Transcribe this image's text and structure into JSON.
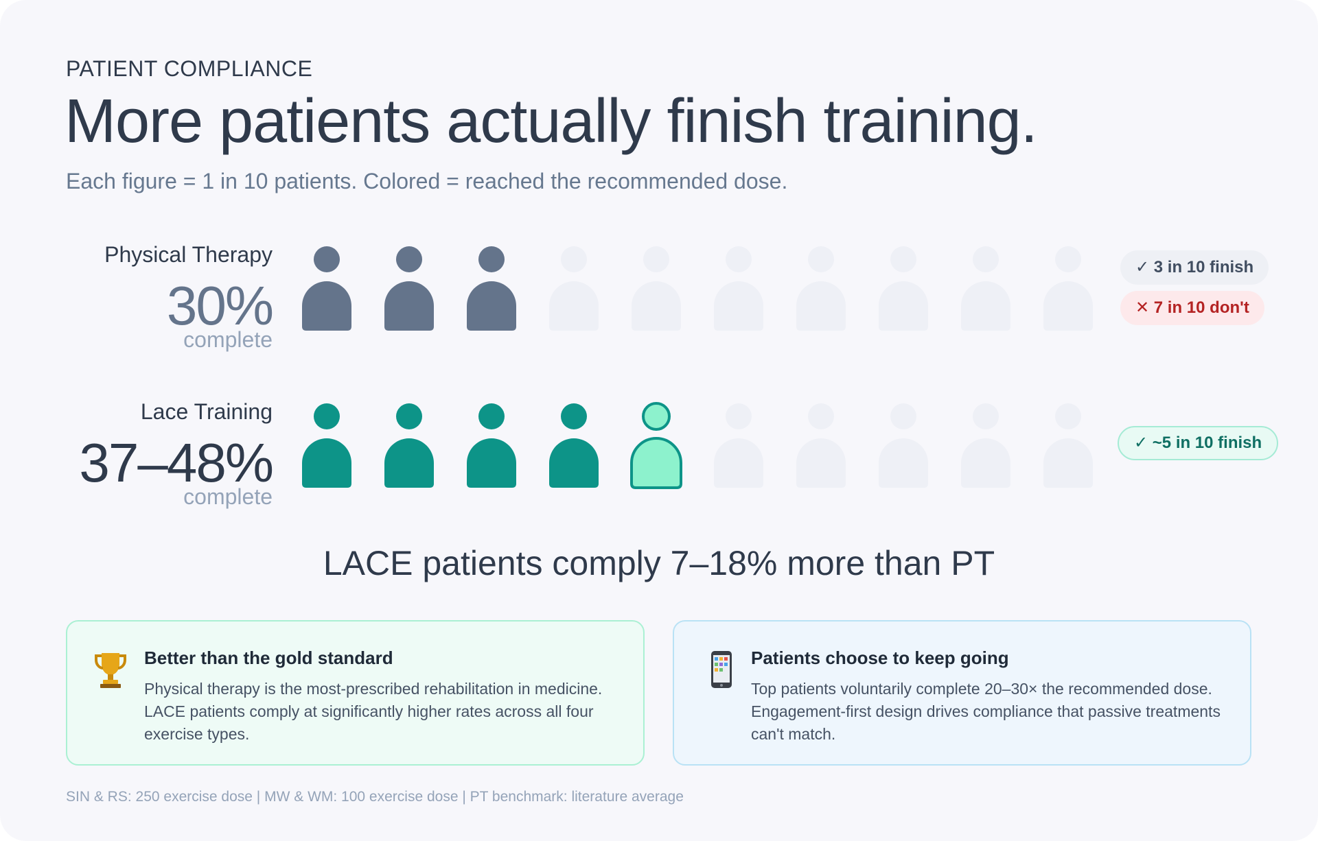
{
  "header": {
    "eyebrow": "PATIENT COMPLIANCE",
    "title": "More patients actually finish training.",
    "subtitle": "Each figure = 1 in 10 patients. Colored = reached the recommended dose."
  },
  "chart_data": {
    "type": "pictogram",
    "total_figures": 10,
    "unit_label": "complete",
    "series": [
      {
        "name": "Physical Therapy",
        "value_text": "30%",
        "value": 30,
        "filled": 3,
        "partial": 0,
        "color": "#64748b",
        "badges": [
          {
            "icon": "✓",
            "text": "3 in 10 finish",
            "style": "gray"
          },
          {
            "icon": "✕",
            "text": "7 in 10 don't",
            "style": "red"
          }
        ]
      },
      {
        "name": "Lace Training",
        "value_text": "37–48%",
        "value_range": [
          37,
          48
        ],
        "filled": 4,
        "partial": 1,
        "color": "#0d9488",
        "partial_color": "#8df2cd",
        "badges": [
          {
            "icon": "✓",
            "text": "~5 in 10 finish",
            "style": "teal"
          }
        ]
      }
    ],
    "empty_color": "#eef0f6"
  },
  "callout": "LACE patients comply 7–18% more than PT",
  "panels": [
    {
      "icon": "trophy-icon",
      "title": "Better than the gold standard",
      "body": "Physical therapy is the most-prescribed rehabilitation in medicine. LACE patients comply at significantly higher rates across all four exercise types."
    },
    {
      "icon": "mobile-phone-icon",
      "title": "Patients choose to keep going",
      "body": "Top patients voluntarily complete 20–30× the recommended dose. Engagement-first design drives compliance that passive treatments can't match."
    }
  ],
  "footnote": "SIN & RS: 250 exercise dose | MW & WM: 100 exercise dose | PT benchmark: literature average"
}
